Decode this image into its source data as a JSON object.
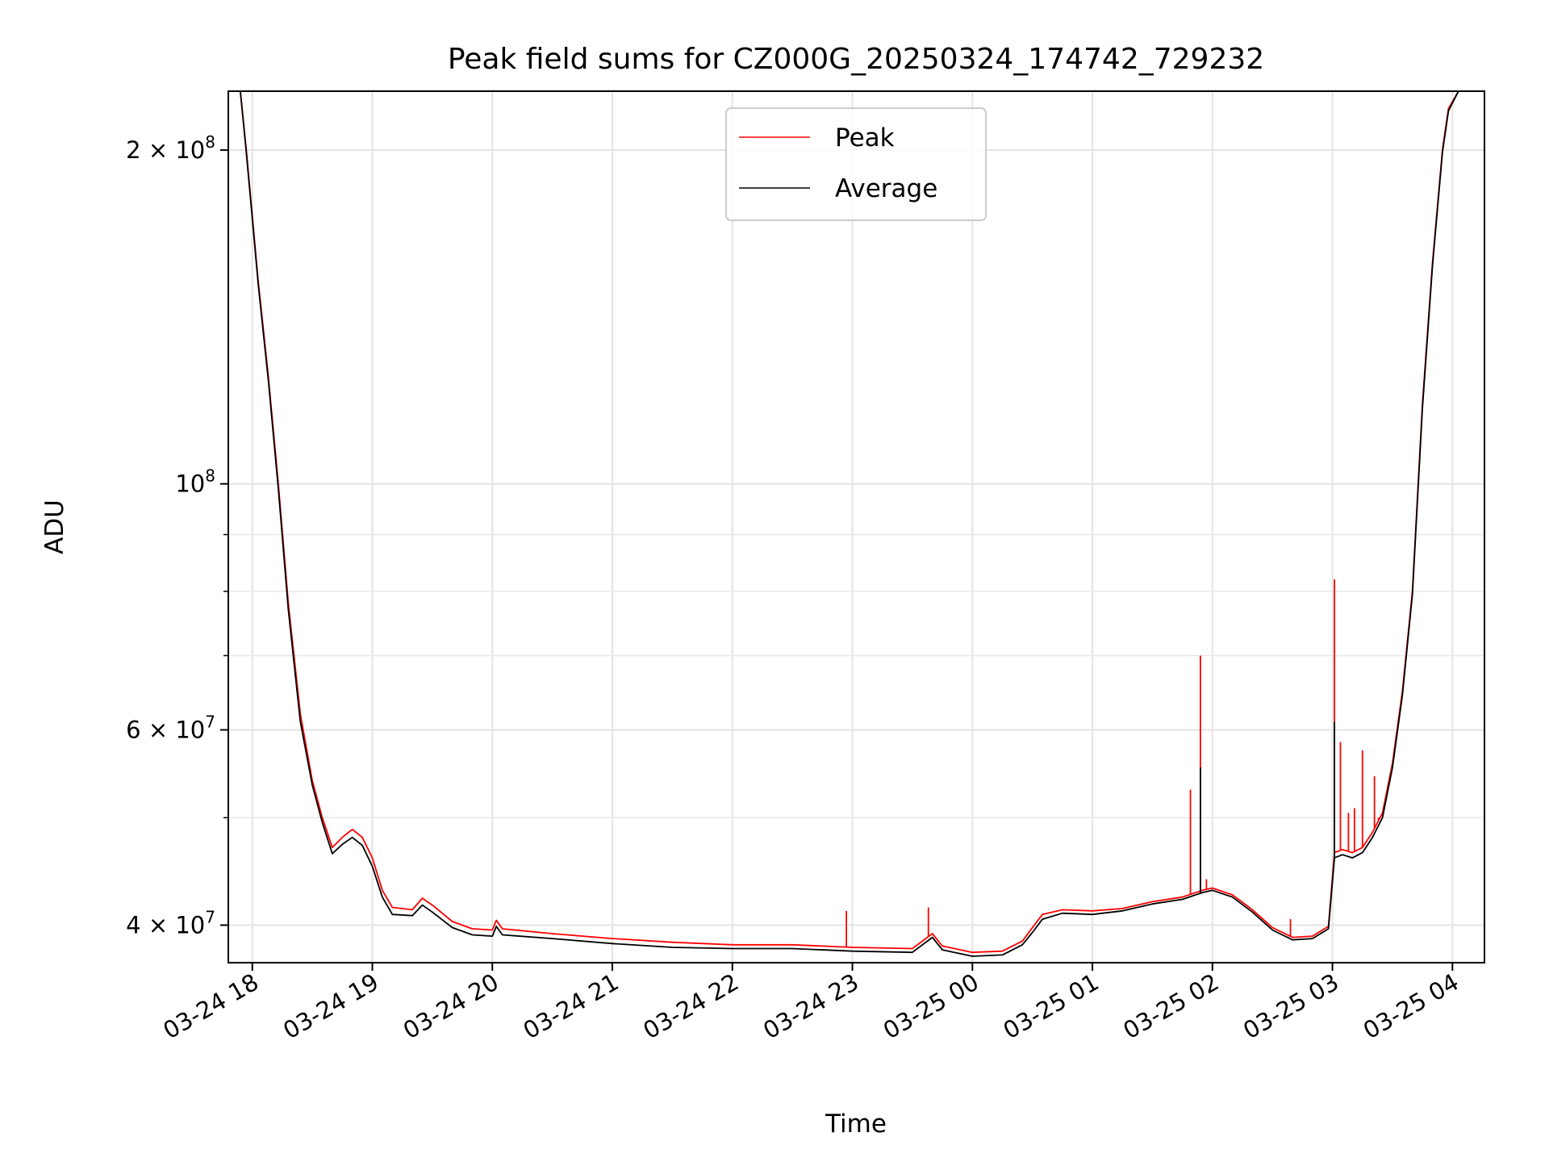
{
  "chart_data": {
    "type": "line",
    "title": "Peak field sums for CZ000G_20250324_174742_729232",
    "xlabel": "Time",
    "ylabel": "ADU",
    "y_scale": "log",
    "ylim": [
      37000000,
      226000000
    ],
    "xlim": [
      "2025-03-24 17:48",
      "2025-03-25 04:16"
    ],
    "grid": true,
    "legend_position": "top-center",
    "x_ticks": [
      {
        "time": "2025-03-24 18:00",
        "label": "03-24 18"
      },
      {
        "time": "2025-03-24 19:00",
        "label": "03-24 19"
      },
      {
        "time": "2025-03-24 20:00",
        "label": "03-24 20"
      },
      {
        "time": "2025-03-24 21:00",
        "label": "03-24 21"
      },
      {
        "time": "2025-03-24 22:00",
        "label": "03-24 22"
      },
      {
        "time": "2025-03-24 23:00",
        "label": "03-24 23"
      },
      {
        "time": "2025-03-25 00:00",
        "label": "03-25 00"
      },
      {
        "time": "2025-03-25 01:00",
        "label": "03-25 01"
      },
      {
        "time": "2025-03-25 02:00",
        "label": "03-25 02"
      },
      {
        "time": "2025-03-25 03:00",
        "label": "03-25 03"
      },
      {
        "time": "2025-03-25 04:00",
        "label": "03-25 04"
      }
    ],
    "y_ticks": [
      {
        "value": 40000000,
        "base": "4 × 10",
        "exp": "7"
      },
      {
        "value": 60000000,
        "base": "6 × 10",
        "exp": "7"
      },
      {
        "value": 100000000,
        "base": "10",
        "exp": "8"
      },
      {
        "value": 200000000,
        "base": "2 × 10",
        "exp": "8"
      }
    ],
    "y_minor_ticks": [
      50000000,
      70000000,
      80000000,
      90000000
    ],
    "series": [
      {
        "name": "Peak",
        "color": "#ff0000",
        "points": [
          [
            "2025-03-24 17:48",
            226000000
          ],
          [
            "2025-03-24 17:54",
            226000000
          ],
          [
            "2025-03-24 17:57",
            200000000
          ],
          [
            "2025-03-24 18:03",
            152000000
          ],
          [
            "2025-03-24 18:08",
            125000000
          ],
          [
            "2025-03-24 18:13",
            100000000
          ],
          [
            "2025-03-24 18:18",
            78000000
          ],
          [
            "2025-03-24 18:24",
            62000000
          ],
          [
            "2025-03-24 18:30",
            54000000
          ],
          [
            "2025-03-24 18:35",
            50000000
          ],
          [
            "2025-03-24 18:40",
            47000000
          ],
          [
            "2025-03-24 18:45",
            48000000
          ],
          [
            "2025-03-24 18:50",
            48800000
          ],
          [
            "2025-03-24 18:55",
            48000000
          ],
          [
            "2025-03-24 19:00",
            46000000
          ],
          [
            "2025-03-24 19:05",
            43000000
          ],
          [
            "2025-03-24 19:10",
            41500000
          ],
          [
            "2025-03-24 19:20",
            41300000
          ],
          [
            "2025-03-24 19:25",
            42300000
          ],
          [
            "2025-03-24 19:30",
            41700000
          ],
          [
            "2025-03-24 19:40",
            40300000
          ],
          [
            "2025-03-24 19:50",
            39700000
          ],
          [
            "2025-03-24 20:00",
            39600000
          ],
          [
            "2025-03-24 20:02",
            40400000
          ],
          [
            "2025-03-24 20:05",
            39700000
          ],
          [
            "2025-03-24 20:30",
            39300000
          ],
          [
            "2025-03-24 21:00",
            38900000
          ],
          [
            "2025-03-24 21:30",
            38600000
          ],
          [
            "2025-03-24 22:00",
            38400000
          ],
          [
            "2025-03-24 22:30",
            38400000
          ],
          [
            "2025-03-24 23:00",
            38200000
          ],
          [
            "2025-03-24 23:30",
            38100000
          ],
          [
            "2025-03-24 23:40",
            39300000
          ],
          [
            "2025-03-24 23:45",
            38300000
          ],
          [
            "2025-03-25 00:00",
            37800000
          ],
          [
            "2025-03-25 00:15",
            37900000
          ],
          [
            "2025-03-25 00:25",
            38700000
          ],
          [
            "2025-03-25 00:30",
            39800000
          ],
          [
            "2025-03-25 00:35",
            40900000
          ],
          [
            "2025-03-25 00:45",
            41300000
          ],
          [
            "2025-03-25 01:00",
            41200000
          ],
          [
            "2025-03-25 01:15",
            41400000
          ],
          [
            "2025-03-25 01:30",
            42000000
          ],
          [
            "2025-03-25 01:45",
            42400000
          ],
          [
            "2025-03-25 01:55",
            43000000
          ],
          [
            "2025-03-25 02:00",
            43200000
          ],
          [
            "2025-03-25 02:10",
            42600000
          ],
          [
            "2025-03-25 02:20",
            41300000
          ],
          [
            "2025-03-25 02:30",
            39800000
          ],
          [
            "2025-03-25 02:40",
            39000000
          ],
          [
            "2025-03-25 02:50",
            39100000
          ],
          [
            "2025-03-25 02:58",
            39900000
          ],
          [
            "2025-03-25 03:01",
            46500000
          ],
          [
            "2025-03-25 03:05",
            46800000
          ],
          [
            "2025-03-25 03:10",
            46500000
          ],
          [
            "2025-03-25 03:15",
            47000000
          ],
          [
            "2025-03-25 03:20",
            48500000
          ],
          [
            "2025-03-25 03:25",
            50500000
          ],
          [
            "2025-03-25 03:30",
            56000000
          ],
          [
            "2025-03-25 03:35",
            65000000
          ],
          [
            "2025-03-25 03:40",
            80000000
          ],
          [
            "2025-03-25 03:45",
            118000000
          ],
          [
            "2025-03-25 03:50",
            158000000
          ],
          [
            "2025-03-25 03:55",
            200000000
          ],
          [
            "2025-03-25 03:58",
            218000000
          ],
          [
            "2025-03-25 04:03",
            226000000
          ],
          [
            "2025-03-25 04:16",
            226000000
          ]
        ],
        "spikes": [
          [
            "2025-03-24 22:57",
            41200000
          ],
          [
            "2025-03-24 23:38",
            41500000
          ],
          [
            "2025-03-25 01:49",
            53000000
          ],
          [
            "2025-03-25 01:54",
            70000000
          ],
          [
            "2025-03-25 01:57",
            44000000
          ],
          [
            "2025-03-25 02:39",
            40500000
          ],
          [
            "2025-03-25 03:01",
            82000000
          ],
          [
            "2025-03-25 03:04",
            58500000
          ],
          [
            "2025-03-25 03:08",
            50500000
          ],
          [
            "2025-03-25 03:11",
            51000000
          ],
          [
            "2025-03-25 03:15",
            57500000
          ],
          [
            "2025-03-25 03:21",
            54500000
          ],
          [
            "2025-03-25 03:23",
            50000000
          ]
        ]
      },
      {
        "name": "Average",
        "color": "#000000",
        "points": [
          [
            "2025-03-24 17:48",
            226000000
          ],
          [
            "2025-03-24 17:54",
            226000000
          ],
          [
            "2025-03-24 17:57",
            199000000
          ],
          [
            "2025-03-24 18:03",
            151000000
          ],
          [
            "2025-03-24 18:08",
            124000000
          ],
          [
            "2025-03-24 18:13",
            99000000
          ],
          [
            "2025-03-24 18:18",
            77000000
          ],
          [
            "2025-03-24 18:24",
            61000000
          ],
          [
            "2025-03-24 18:30",
            53500000
          ],
          [
            "2025-03-24 18:35",
            49500000
          ],
          [
            "2025-03-24 18:40",
            46400000
          ],
          [
            "2025-03-24 18:45",
            47300000
          ],
          [
            "2025-03-24 18:50",
            48000000
          ],
          [
            "2025-03-24 18:55",
            47200000
          ],
          [
            "2025-03-24 19:00",
            45200000
          ],
          [
            "2025-03-24 19:05",
            42400000
          ],
          [
            "2025-03-24 19:10",
            40900000
          ],
          [
            "2025-03-24 19:20",
            40800000
          ],
          [
            "2025-03-24 19:25",
            41700000
          ],
          [
            "2025-03-24 19:30",
            41100000
          ],
          [
            "2025-03-24 19:40",
            39800000
          ],
          [
            "2025-03-24 19:50",
            39200000
          ],
          [
            "2025-03-24 20:00",
            39100000
          ],
          [
            "2025-03-24 20:02",
            39900000
          ],
          [
            "2025-03-24 20:05",
            39200000
          ],
          [
            "2025-03-24 20:30",
            38900000
          ],
          [
            "2025-03-24 21:00",
            38500000
          ],
          [
            "2025-03-24 21:30",
            38200000
          ],
          [
            "2025-03-24 22:00",
            38100000
          ],
          [
            "2025-03-24 22:30",
            38100000
          ],
          [
            "2025-03-24 23:00",
            37900000
          ],
          [
            "2025-03-24 23:30",
            37800000
          ],
          [
            "2025-03-24 23:40",
            39000000
          ],
          [
            "2025-03-24 23:45",
            38000000
          ],
          [
            "2025-03-25 00:00",
            37500000
          ],
          [
            "2025-03-25 00:15",
            37600000
          ],
          [
            "2025-03-25 00:25",
            38400000
          ],
          [
            "2025-03-25 00:30",
            39400000
          ],
          [
            "2025-03-25 00:35",
            40500000
          ],
          [
            "2025-03-25 00:45",
            41000000
          ],
          [
            "2025-03-25 01:00",
            40900000
          ],
          [
            "2025-03-25 01:15",
            41200000
          ],
          [
            "2025-03-25 01:30",
            41800000
          ],
          [
            "2025-03-25 01:45",
            42200000
          ],
          [
            "2025-03-25 01:55",
            42800000
          ],
          [
            "2025-03-25 02:00",
            43000000
          ],
          [
            "2025-03-25 02:10",
            42400000
          ],
          [
            "2025-03-25 02:20",
            41100000
          ],
          [
            "2025-03-25 02:30",
            39600000
          ],
          [
            "2025-03-25 02:40",
            38800000
          ],
          [
            "2025-03-25 02:50",
            38900000
          ],
          [
            "2025-03-25 02:58",
            39700000
          ],
          [
            "2025-03-25 03:01",
            46000000
          ],
          [
            "2025-03-25 03:05",
            46300000
          ],
          [
            "2025-03-25 03:10",
            46000000
          ],
          [
            "2025-03-25 03:15",
            46500000
          ],
          [
            "2025-03-25 03:20",
            48000000
          ],
          [
            "2025-03-25 03:25",
            50000000
          ],
          [
            "2025-03-25 03:30",
            55500000
          ],
          [
            "2025-03-25 03:35",
            64500000
          ],
          [
            "2025-03-25 03:40",
            79500000
          ],
          [
            "2025-03-25 03:45",
            117000000
          ],
          [
            "2025-03-25 03:50",
            157000000
          ],
          [
            "2025-03-25 03:55",
            199000000
          ],
          [
            "2025-03-25 03:58",
            217000000
          ],
          [
            "2025-03-25 04:03",
            226000000
          ],
          [
            "2025-03-25 04:16",
            226000000
          ]
        ],
        "spikes": [
          [
            "2025-03-25 01:54",
            55500000
          ],
          [
            "2025-03-25 03:01",
            61000000
          ]
        ]
      }
    ]
  }
}
